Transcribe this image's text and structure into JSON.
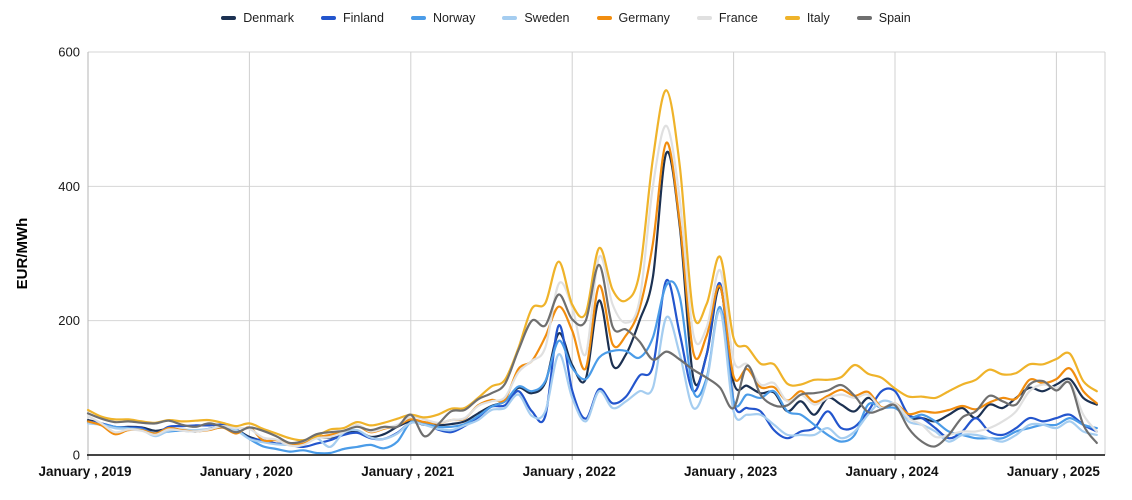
{
  "chart_data": {
    "type": "line",
    "title": "",
    "ylabel": "EUR/MWh",
    "xlabel": "",
    "grid": true,
    "legend_position": "top",
    "ylim": [
      0,
      600
    ],
    "y_ticks": [
      0,
      200,
      400,
      600
    ],
    "x_tick_labels": [
      "January , 2019",
      "January , 2020",
      "January , 2021",
      "January , 2022",
      "January , 2023",
      "January , 2024",
      "January , 2025"
    ],
    "x_unit": "month",
    "x_range": "January 2019 - April 2025",
    "months_per_point": 1,
    "series": [
      {
        "name": "Denmark",
        "color": "#1c3152",
        "values": [
          52,
          47,
          41,
          42,
          41,
          36,
          39,
          37,
          35,
          39,
          42,
          38,
          27,
          21,
          17,
          17,
          19,
          26,
          26,
          32,
          36,
          27,
          31,
          42,
          50,
          45,
          44,
          46,
          50,
          62,
          73,
          80,
          100,
          92,
          108,
          181,
          134,
          113,
          230,
          134,
          150,
          200,
          265,
          450,
          340,
          115,
          150,
          250,
          108,
          103,
          92,
          93,
          65,
          80,
          60,
          85,
          75,
          65,
          85,
          70,
          75,
          55,
          55,
          50,
          60,
          70,
          55,
          75,
          70,
          85,
          100,
          95,
          105,
          113,
          85,
          75
        ]
      },
      {
        "name": "Finland",
        "color": "#2355cd",
        "values": [
          50,
          47,
          42,
          41,
          40,
          32,
          42,
          43,
          44,
          44,
          45,
          38,
          25,
          22,
          17,
          15,
          12,
          17,
          22,
          30,
          33,
          25,
          24,
          33,
          48,
          47,
          38,
          34,
          43,
          56,
          72,
          74,
          95,
          65,
          58,
          193,
          96,
          54,
          98,
          77,
          87,
          118,
          132,
          260,
          180,
          95,
          150,
          255,
          80,
          70,
          65,
          37,
          25,
          35,
          40,
          65,
          40,
          42,
          65,
          95,
          95,
          60,
          55,
          40,
          25,
          35,
          55,
          35,
          30,
          40,
          55,
          50,
          55,
          60,
          45,
          35
        ]
      },
      {
        "name": "Norway",
        "color": "#4b9ce8",
        "values": [
          49,
          46,
          42,
          40,
          38,
          32,
          35,
          36,
          35,
          38,
          41,
          38,
          24,
          13,
          9,
          5,
          7,
          3,
          3,
          9,
          12,
          15,
          10,
          20,
          49,
          48,
          42,
          42,
          46,
          58,
          72,
          80,
          102,
          95,
          110,
          170,
          130,
          113,
          145,
          155,
          155,
          145,
          175,
          253,
          235,
          95,
          115,
          220,
          80,
          90,
          85,
          95,
          65,
          60,
          45,
          30,
          20,
          30,
          75,
          70,
          70,
          55,
          60,
          50,
          35,
          30,
          25,
          25,
          25,
          35,
          40,
          45,
          45,
          55,
          45,
          40
        ]
      },
      {
        "name": "Sweden",
        "color": "#a5cdf0",
        "values": [
          47,
          45,
          40,
          39,
          37,
          28,
          36,
          38,
          37,
          39,
          42,
          37,
          24,
          19,
          16,
          15,
          18,
          25,
          12,
          33,
          37,
          26,
          24,
          32,
          48,
          45,
          39,
          37,
          44,
          52,
          67,
          70,
          90,
          58,
          65,
          150,
          85,
          50,
          95,
          70,
          80,
          95,
          100,
          205,
          150,
          70,
          110,
          215,
          65,
          60,
          60,
          45,
          30,
          30,
          30,
          40,
          25,
          35,
          60,
          80,
          75,
          50,
          45,
          35,
          20,
          30,
          30,
          25,
          20,
          30,
          45,
          45,
          40,
          50,
          35,
          30
        ]
      },
      {
        "name": "Germany",
        "color": "#f18d0f",
        "values": [
          50,
          44,
          31,
          37,
          37,
          32,
          40,
          37,
          35,
          37,
          41,
          32,
          41,
          22,
          22,
          17,
          17,
          26,
          30,
          35,
          43,
          34,
          39,
          44,
          53,
          49,
          47,
          52,
          54,
          74,
          82,
          83,
          128,
          140,
          176,
          221,
          185,
          129,
          252,
          165,
          178,
          218,
          315,
          465,
          346,
          153,
          178,
          251,
          117,
          128,
          101,
          101,
          81,
          95,
          79,
          88,
          97,
          88,
          94,
          71,
          77,
          61,
          65,
          63,
          67,
          73,
          68,
          78,
          85,
          84,
          112,
          107,
          113,
          129,
          95,
          77
        ]
      },
      {
        "name": "France",
        "color": "#e0e0e0",
        "values": [
          58,
          47,
          34,
          38,
          36,
          30,
          38,
          36,
          35,
          38,
          43,
          40,
          39,
          26,
          23,
          14,
          15,
          25,
          27,
          34,
          45,
          35,
          40,
          45,
          57,
          53,
          48,
          52,
          55,
          73,
          80,
          86,
          123,
          140,
          160,
          255,
          220,
          150,
          295,
          224,
          197,
          230,
          400,
          490,
          380,
          180,
          190,
          275,
          141,
          135,
          105,
          107,
          80,
          90,
          75,
          85,
          90,
          85,
          90,
          70,
          77,
          55,
          45,
          27,
          30,
          35,
          35,
          40,
          50,
          65,
          95,
          105,
          100,
          108,
          60,
          35
        ]
      },
      {
        "name": "Italy",
        "color": "#efb32a",
        "values": [
          67,
          57,
          53,
          53,
          50,
          48,
          52,
          50,
          51,
          52,
          48,
          43,
          47,
          39,
          32,
          25,
          22,
          28,
          38,
          40,
          49,
          44,
          48,
          54,
          60,
          56,
          60,
          69,
          70,
          85,
          102,
          112,
          159,
          218,
          226,
          288,
          224,
          211,
          308,
          246,
          230,
          271,
          441,
          543,
          430,
          211,
          225,
          295,
          174,
          161,
          136,
          135,
          106,
          105,
          112,
          112,
          116,
          134,
          121,
          115,
          99,
          87,
          87,
          85,
          95,
          105,
          112,
          127,
          120,
          122,
          135,
          135,
          143,
          151,
          110,
          95
        ]
      },
      {
        "name": "Spain",
        "color": "#6f6f6f",
        "values": [
          62,
          54,
          49,
          50,
          48,
          47,
          51,
          45,
          42,
          47,
          42,
          34,
          41,
          36,
          28,
          18,
          21,
          31,
          34,
          36,
          42,
          37,
          42,
          42,
          60,
          28,
          45,
          65,
          67,
          83,
          92,
          106,
          156,
          200,
          193,
          239,
          202,
          200,
          283,
          191,
          187,
          169,
          142,
          154,
          142,
          127,
          115,
          100,
          70,
          133,
          90,
          74,
          74,
          90,
          92,
          96,
          104,
          88,
          64,
          68,
          74,
          40,
          20,
          13,
          30,
          56,
          65,
          88,
          80,
          75,
          105,
          110,
          96,
          107,
          45,
          18
        ]
      }
    ]
  }
}
